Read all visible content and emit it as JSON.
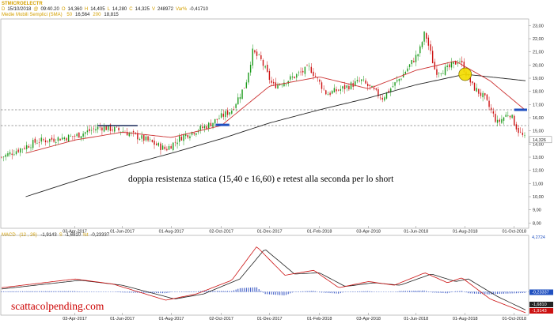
{
  "header": {
    "title": "STMICROELECTR",
    "row": [
      {
        "k": "D",
        "v": "15/10/2018"
      },
      {
        "k": "@",
        "v": "09:40.20"
      },
      {
        "k": "O",
        "v": "14,360"
      },
      {
        "k": "H",
        "v": "14,405"
      },
      {
        "k": "L",
        "v": "14,280"
      },
      {
        "k": "C",
        "v": "14,325"
      },
      {
        "k": "V",
        "v": "248972"
      },
      {
        "k": "Var%",
        "v": "-0,41710"
      }
    ],
    "ma_label": "Medie Mobili Semplici (SMA)",
    "ma_items": [
      {
        "k": "50",
        "v": "16,564"
      },
      {
        "k": "200",
        "v": "18,815"
      }
    ]
  },
  "macd_header": {
    "label": "MACD",
    "params": "(12 , 26)",
    "items": [
      {
        "v": "-1,9143"
      },
      {
        "k": "S",
        "v": "-1,6810"
      },
      {
        "k": "Ist",
        "v": "-0,23337"
      }
    ]
  },
  "annotation": "doppia resistenza statica (15,40 e 16,60) e retest alla seconda per lo short",
  "watermark": "scattacolpending.com",
  "colors": {
    "candle_up": "#1a9a1a",
    "candle_down": "#cc1111",
    "sma50": "#cc3333",
    "sma200": "#222222",
    "resistance": "#444444",
    "highlight": "#f2dc00",
    "histogram": "#3050c0",
    "accent_label": "#2050c0"
  },
  "chart_data": [
    {
      "type": "candlestick",
      "title": "",
      "xlabel": "",
      "ylabel": "",
      "x_ticks": [
        "03-Apr-2017",
        "01-Jun-2017",
        "01-Aug-2017",
        "02-Oct-2017",
        "01-Dec-2017",
        "01-Feb-2018",
        "03-Apr-2018",
        "01-Jun-2018",
        "01-Aug-2018",
        "01-Oct-2018"
      ],
      "y_ticks": [
        "8,00",
        "9,00",
        "10,00",
        "11,00",
        "12,00",
        "13,00",
        "14,00",
        "15,00",
        "16,00",
        "17,00",
        "18,00",
        "19,00",
        "20,00",
        "21,00",
        "22,00",
        "23,00"
      ],
      "ylim": [
        7.6,
        23.5
      ],
      "last_price_label": "14,326",
      "resistance_levels": [
        15.4,
        16.6
      ],
      "close_anchors": [
        {
          "date": "2017-01-02",
          "value": 13.0
        },
        {
          "date": "2017-02-15",
          "value": 14.2
        },
        {
          "date": "2017-04-03",
          "value": 14.6
        },
        {
          "date": "2017-05-05",
          "value": 15.3
        },
        {
          "date": "2017-06-01",
          "value": 15.0
        },
        {
          "date": "2017-07-01",
          "value": 14.3
        },
        {
          "date": "2017-07-25",
          "value": 13.6
        },
        {
          "date": "2017-08-15",
          "value": 14.6
        },
        {
          "date": "2017-09-15",
          "value": 15.4
        },
        {
          "date": "2017-10-15",
          "value": 16.6
        },
        {
          "date": "2017-11-01",
          "value": 18.5
        },
        {
          "date": "2017-11-10",
          "value": 21.0
        },
        {
          "date": "2017-11-20",
          "value": 20.4
        },
        {
          "date": "2017-12-05",
          "value": 18.4
        },
        {
          "date": "2017-12-25",
          "value": 18.9
        },
        {
          "date": "2018-01-20",
          "value": 19.8
        },
        {
          "date": "2018-02-10",
          "value": 17.8
        },
        {
          "date": "2018-03-01",
          "value": 18.2
        },
        {
          "date": "2018-03-25",
          "value": 18.8
        },
        {
          "date": "2018-04-20",
          "value": 17.5
        },
        {
          "date": "2018-05-15",
          "value": 19.2
        },
        {
          "date": "2018-06-05",
          "value": 21.0
        },
        {
          "date": "2018-06-12",
          "value": 22.5
        },
        {
          "date": "2018-06-25",
          "value": 19.5
        },
        {
          "date": "2018-07-10",
          "value": 19.7
        },
        {
          "date": "2018-07-25",
          "value": 20.4
        },
        {
          "date": "2018-08-10",
          "value": 18.4
        },
        {
          "date": "2018-08-25",
          "value": 17.5
        },
        {
          "date": "2018-09-10",
          "value": 15.6
        },
        {
          "date": "2018-09-25",
          "value": 16.4
        },
        {
          "date": "2018-10-05",
          "value": 15.1
        },
        {
          "date": "2018-10-15",
          "value": 14.33
        }
      ],
      "sma50_anchors": [
        {
          "date": "2017-02-01",
          "value": 13.3
        },
        {
          "date": "2017-04-03",
          "value": 14.3
        },
        {
          "date": "2017-06-01",
          "value": 14.9
        },
        {
          "date": "2017-08-01",
          "value": 14.5
        },
        {
          "date": "2017-10-02",
          "value": 15.4
        },
        {
          "date": "2017-12-01",
          "value": 18.4
        },
        {
          "date": "2018-02-01",
          "value": 19.1
        },
        {
          "date": "2018-04-03",
          "value": 18.2
        },
        {
          "date": "2018-06-01",
          "value": 19.6
        },
        {
          "date": "2018-07-20",
          "value": 20.3
        },
        {
          "date": "2018-09-01",
          "value": 18.8
        },
        {
          "date": "2018-10-15",
          "value": 16.56
        }
      ],
      "sma200_anchors": [
        {
          "date": "2017-02-01",
          "value": 10.0
        },
        {
          "date": "2017-04-03",
          "value": 11.2
        },
        {
          "date": "2017-06-01",
          "value": 12.3
        },
        {
          "date": "2017-08-01",
          "value": 13.3
        },
        {
          "date": "2017-10-02",
          "value": 14.4
        },
        {
          "date": "2017-12-01",
          "value": 15.6
        },
        {
          "date": "2018-02-01",
          "value": 16.6
        },
        {
          "date": "2018-04-03",
          "value": 17.5
        },
        {
          "date": "2018-06-01",
          "value": 18.5
        },
        {
          "date": "2018-08-01",
          "value": 19.3
        },
        {
          "date": "2018-10-15",
          "value": 18.81
        }
      ],
      "highlight_point": {
        "date": "2018-08-01",
        "value": 19.3
      }
    },
    {
      "type": "line",
      "title": "MACD",
      "x_ticks": [
        "03-Apr-2017",
        "01-Jun-2017",
        "01-Aug-2017",
        "02-Oct-2017",
        "01-Dec-2017",
        "01-Feb-2018",
        "03-Apr-2018",
        "01-Jun-2018",
        "01-Aug-2018",
        "01-Oct-2018"
      ],
      "y_labels": [
        "4,2724",
        "-0,23337",
        "-1,6810",
        "-1,9143"
      ],
      "ylim": [
        -2.1,
        4.3
      ],
      "macd_anchors": [
        {
          "date": "2017-01-02",
          "value": 0.1
        },
        {
          "date": "2017-04-03",
          "value": 0.8
        },
        {
          "date": "2017-05-20",
          "value": 0.4
        },
        {
          "date": "2017-07-25",
          "value": -0.9
        },
        {
          "date": "2017-09-01",
          "value": -0.4
        },
        {
          "date": "2017-10-15",
          "value": 0.7
        },
        {
          "date": "2017-11-15",
          "value": 3.4
        },
        {
          "date": "2017-12-20",
          "value": 1.1
        },
        {
          "date": "2018-01-25",
          "value": 1.5
        },
        {
          "date": "2018-02-25",
          "value": 0.1
        },
        {
          "date": "2018-04-03",
          "value": 0.6
        },
        {
          "date": "2018-05-05",
          "value": 0.3
        },
        {
          "date": "2018-06-12",
          "value": 1.3
        },
        {
          "date": "2018-07-10",
          "value": 0.5
        },
        {
          "date": "2018-07-28",
          "value": 0.9
        },
        {
          "date": "2018-09-01",
          "value": -0.8
        },
        {
          "date": "2018-10-15",
          "value": -1.91
        }
      ],
      "signal_anchors": [
        {
          "date": "2017-01-02",
          "value": 0.0
        },
        {
          "date": "2017-04-10",
          "value": 0.7
        },
        {
          "date": "2017-06-01",
          "value": 0.3
        },
        {
          "date": "2017-08-05",
          "value": -0.8
        },
        {
          "date": "2017-09-10",
          "value": -0.4
        },
        {
          "date": "2017-10-25",
          "value": 0.8
        },
        {
          "date": "2017-11-25",
          "value": 3.2
        },
        {
          "date": "2018-01-01",
          "value": 1.2
        },
        {
          "date": "2018-02-01",
          "value": 1.3
        },
        {
          "date": "2018-03-05",
          "value": 0.2
        },
        {
          "date": "2018-04-10",
          "value": 0.5
        },
        {
          "date": "2018-05-12",
          "value": 0.3
        },
        {
          "date": "2018-06-20",
          "value": 1.2
        },
        {
          "date": "2018-07-20",
          "value": 0.6
        },
        {
          "date": "2018-08-05",
          "value": 0.8
        },
        {
          "date": "2018-09-10",
          "value": -0.6
        },
        {
          "date": "2018-10-15",
          "value": -1.68
        }
      ]
    }
  ]
}
